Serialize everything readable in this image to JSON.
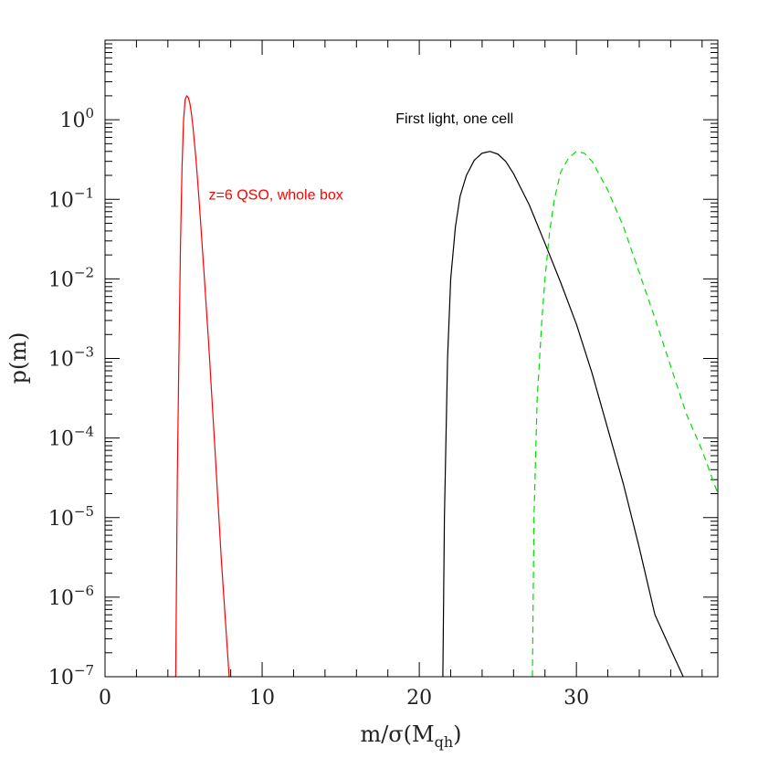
{
  "chart_data": {
    "type": "line",
    "title": "",
    "xlabel": "m/σ(M",
    "xlabel_sub": "qh",
    "xlabel_close": ")",
    "ylabel": "p(m)",
    "xlim": [
      0,
      39
    ],
    "ylim": [
      1e-07,
      10
    ],
    "yscale": "log",
    "x_ticks": [
      0,
      10,
      20,
      30
    ],
    "x_tick_labels": [
      "0",
      "10",
      "20",
      "30"
    ],
    "y_tick_base": "10",
    "y_ticks": [
      {
        "value": 1,
        "exponent": "0"
      },
      {
        "value": 0.1,
        "exponent": "−1"
      },
      {
        "value": 0.01,
        "exponent": "−2"
      },
      {
        "value": 0.001,
        "exponent": "−3"
      },
      {
        "value": 0.0001,
        "exponent": "−4"
      },
      {
        "value": 1e-05,
        "exponent": "−5"
      },
      {
        "value": 1e-06,
        "exponent": "−6"
      },
      {
        "value": 1e-07,
        "exponent": "−7"
      }
    ],
    "grid": false,
    "legend": "none",
    "annotations": [
      {
        "text": "z=6 QSO, whole box",
        "x": 6.6,
        "y": 0.1,
        "color": "#ff0000"
      },
      {
        "text": "First light, one cell",
        "x": 18.5,
        "y": 0.9,
        "color": "#000000"
      }
    ],
    "series": [
      {
        "color": "#ff0000",
        "dash": "solid",
        "x": [
          4.5,
          4.6,
          4.7,
          4.8,
          4.9,
          5.0,
          5.1,
          5.2,
          5.3,
          5.4,
          5.5,
          5.6,
          5.8,
          6.0,
          6.3,
          6.6,
          7.0,
          7.4,
          7.9
        ],
        "y": [
          1e-07,
          3e-05,
          0.001,
          0.025,
          0.25,
          1.0,
          1.8,
          2.0,
          1.9,
          1.6,
          1.2,
          0.8,
          0.3,
          0.09,
          0.012,
          0.0015,
          7e-05,
          3e-06,
          1e-07
        ]
      },
      {
        "color": "#000000",
        "dash": "solid",
        "x": [
          21.5,
          21.6,
          21.8,
          22.0,
          22.3,
          22.6,
          23.0,
          23.5,
          24.0,
          24.5,
          25.0,
          25.5,
          26.0,
          27.0,
          28.0,
          29.0,
          30.0,
          31.0,
          32.0,
          33.0,
          34.0,
          35.0,
          36.0,
          36.8
        ],
        "y": [
          1e-07,
          1e-05,
          0.001,
          0.01,
          0.045,
          0.11,
          0.2,
          0.31,
          0.38,
          0.4,
          0.37,
          0.3,
          0.21,
          0.085,
          0.028,
          0.009,
          0.0027,
          0.00065,
          0.00013,
          2.6e-05,
          4.2e-06,
          6e-07,
          2.2e-07,
          1e-07
        ]
      },
      {
        "color": "#00dd00",
        "dash": "dashed",
        "x": [
          27.2,
          27.3,
          27.5,
          27.8,
          28.0,
          28.3,
          28.6,
          29.0,
          29.5,
          30.0,
          30.5,
          31.0,
          32.0,
          33.0,
          34.0,
          35.0,
          36.0,
          37.0,
          38.0,
          39.0
        ],
        "y": [
          1e-07,
          1e-05,
          0.0003,
          0.003,
          0.01,
          0.04,
          0.1,
          0.22,
          0.33,
          0.4,
          0.38,
          0.3,
          0.13,
          0.045,
          0.012,
          0.0032,
          0.0008,
          0.0002,
          7e-05,
          2e-05
        ]
      }
    ]
  }
}
